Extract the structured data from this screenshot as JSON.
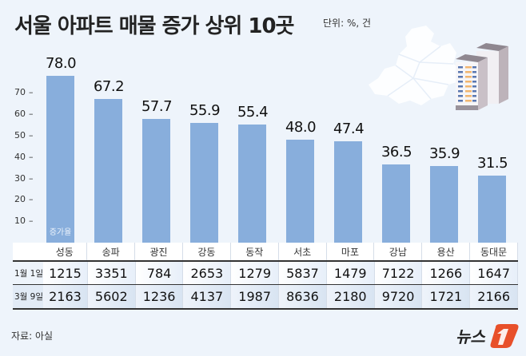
{
  "header": {
    "title": "서울 아파트 매물 증가 상위 10곳",
    "unit": "단위: %, 건"
  },
  "chart_data": {
    "type": "bar",
    "title": "서울 아파트 매물 증가 상위 10곳",
    "unit": "단위: %, 건",
    "series_label": "증가율",
    "categories": [
      "성동",
      "송파",
      "광진",
      "강동",
      "동작",
      "서초",
      "마포",
      "강남",
      "용산",
      "동대문"
    ],
    "values": [
      78.0,
      67.2,
      57.7,
      55.9,
      55.4,
      48.0,
      47.4,
      36.5,
      35.9,
      31.5
    ],
    "value_labels": [
      "78.0",
      "67.2",
      "57.7",
      "55.9",
      "55.4",
      "48.0",
      "47.4",
      "36.5",
      "35.9",
      "31.5"
    ],
    "yticks": [
      10,
      20,
      30,
      40,
      50,
      60,
      70
    ],
    "ylim": [
      0,
      80
    ],
    "grid": false,
    "bar_color": "#88aedc",
    "table": {
      "rows": [
        {
          "label": "1월 1일",
          "values": [
            1215,
            3351,
            784,
            2653,
            1279,
            5837,
            1479,
            7122,
            1266,
            1647
          ]
        },
        {
          "label": "3월 9일",
          "values": [
            2163,
            5602,
            1236,
            4137,
            1987,
            8636,
            2180,
            9720,
            1721,
            2166
          ]
        }
      ]
    }
  },
  "table": {
    "headers": [
      "성동",
      "송파",
      "광진",
      "강동",
      "동작",
      "서초",
      "마포",
      "강남",
      "용산",
      "동대문"
    ],
    "row1": {
      "label": "1월 1일",
      "values": [
        "1215",
        "3351",
        "784",
        "2653",
        "1279",
        "5837",
        "1479",
        "7122",
        "1266",
        "1647"
      ]
    },
    "row2": {
      "label": "3월 9일",
      "values": [
        "2163",
        "5602",
        "1236",
        "4137",
        "1987",
        "8636",
        "2180",
        "9720",
        "1721",
        "2166"
      ]
    }
  },
  "footer": {
    "source": "자료: 아실",
    "logo_text": "뉴스",
    "logo_mark": "1",
    "logo_color": "#e8502a"
  }
}
